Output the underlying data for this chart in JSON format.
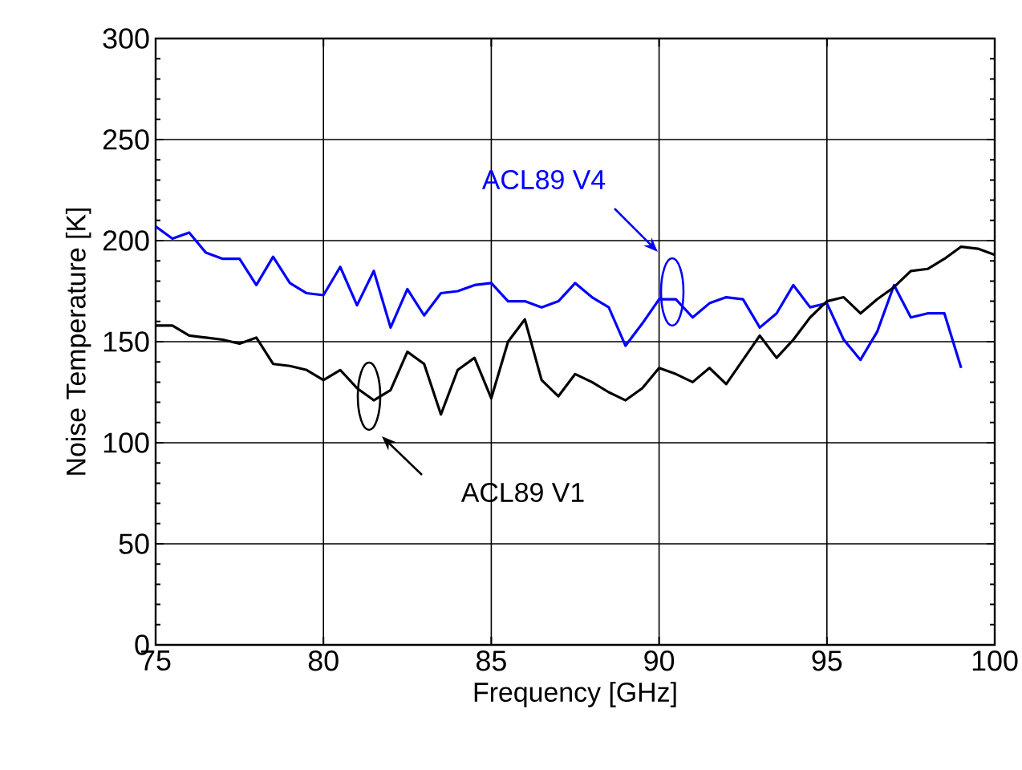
{
  "chart_data": {
    "type": "line",
    "xlabel": "Frequency [GHz]",
    "ylabel": "Noise Temperature [K]",
    "xlim": [
      75,
      100
    ],
    "ylim": [
      0,
      300
    ],
    "xticks": [
      75,
      80,
      85,
      90,
      95,
      100
    ],
    "yticks": [
      0,
      50,
      100,
      150,
      200,
      250,
      300
    ],
    "grid": true,
    "marker": "none",
    "line_style": "solid",
    "series": [
      {
        "color": "#0000ff",
        "x": [
          75,
          75.5,
          76,
          76.5,
          77,
          77.5,
          78,
          78.5,
          79,
          79.5,
          80,
          80.5,
          81,
          81.5,
          82,
          82.5,
          83,
          83.5,
          84,
          84.5,
          85,
          85.5,
          86,
          86.5,
          87,
          87.5,
          88,
          88.5,
          89,
          89.5,
          90,
          90.5,
          91,
          91.5,
          92,
          92.5,
          93,
          93.5,
          94,
          94.5,
          95,
          95.5,
          96,
          96.5,
          97,
          97.5,
          98,
          98.5,
          99
        ],
        "values": [
          207,
          201,
          204,
          194,
          191,
          191,
          178,
          192,
          179,
          174,
          173,
          187,
          168,
          185,
          157,
          176,
          163,
          174,
          175,
          178,
          179,
          170,
          170,
          167,
          170,
          179,
          172,
          167,
          148,
          159,
          171,
          171,
          162,
          169,
          172,
          171,
          157,
          164,
          178,
          167,
          169,
          151,
          141,
          155,
          178,
          162,
          164,
          164,
          137
        ]
      },
      {
        "color": "#000000",
        "x": [
          75,
          75.5,
          76,
          76.5,
          77,
          77.5,
          78,
          78.5,
          79,
          79.5,
          80,
          80.5,
          81,
          81.5,
          82,
          82.5,
          83,
          83.5,
          84,
          84.5,
          85,
          85.5,
          86,
          86.5,
          87,
          87.5,
          88,
          88.5,
          89,
          89.5,
          90,
          90.5,
          91,
          91.5,
          92,
          92.5,
          93,
          93.5,
          94,
          94.5,
          95,
          95.5,
          96,
          96.5,
          97,
          97.5,
          98,
          98.5,
          99,
          99.5,
          100
        ],
        "values": [
          158,
          158,
          153,
          152,
          151,
          149,
          152,
          139,
          138,
          136,
          131,
          136,
          127,
          121,
          126,
          145,
          139,
          114,
          136,
          142,
          122,
          150,
          161,
          131,
          123,
          134,
          130,
          125,
          121,
          127,
          137,
          134,
          130,
          137,
          129,
          141,
          153,
          142,
          151,
          162,
          170,
          172,
          164,
          171,
          177,
          185,
          186,
          191,
          197,
          196,
          193
        ]
      }
    ],
    "annotations": [
      "ACL89 V4",
      "ACL89 V1"
    ]
  }
}
